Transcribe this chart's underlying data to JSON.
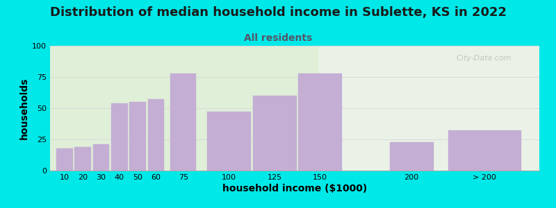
{
  "title": "Distribution of median household income in Sublette, KS in 2022",
  "subtitle": "All residents",
  "xlabel": "household income ($1000)",
  "ylabel": "households",
  "bar_labels": [
    "10",
    "20",
    "30",
    "40",
    "50",
    "60",
    "75",
    "100",
    "125",
    "150",
    "200",
    "> 200"
  ],
  "bar_centers": [
    10,
    20,
    30,
    40,
    50,
    60,
    75,
    100,
    125,
    150,
    200,
    240
  ],
  "bar_widths": [
    9,
    9,
    9,
    9,
    9,
    9,
    14,
    24,
    24,
    24,
    24,
    40
  ],
  "bar_values": [
    18,
    19,
    21,
    54,
    55,
    57,
    78,
    47,
    60,
    78,
    23,
    32
  ],
  "bar_color": "#c4aed4",
  "ylim": [
    0,
    100
  ],
  "yticks": [
    0,
    25,
    50,
    75,
    100
  ],
  "xlim": [
    2,
    270
  ],
  "bg_outer": "#00e8e8",
  "bg_plot_left": "#e0efd8",
  "bg_plot_right": "#f0f4f0",
  "grid_color": "#d8d8d8",
  "title_fontsize": 13,
  "subtitle_fontsize": 10,
  "axis_label_fontsize": 10,
  "tick_fontsize": 8,
  "watermark_text": "City-Data.com",
  "xtick_positions": [
    10,
    20,
    30,
    40,
    50,
    60,
    75,
    100,
    125,
    150,
    200,
    240
  ],
  "xtick_labels": [
    "10",
    "20",
    "30",
    "40",
    "50",
    "60",
    "75",
    "100",
    "125",
    "150",
    "200",
    "> 200"
  ]
}
